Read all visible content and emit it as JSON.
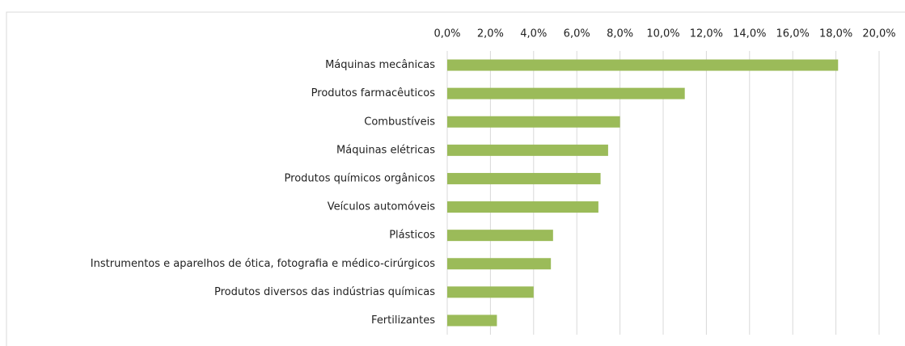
{
  "chart_data": {
    "type": "bar",
    "orientation": "horizontal",
    "categories": [
      "Máquinas mecânicas",
      "Produtos farmacêuticos",
      "Combustíveis ",
      "Máquinas elétricas",
      "Produtos químicos orgânicos",
      "Veículos automóveis",
      "Plásticos",
      "Instrumentos e aparelhos de ótica, fotografia e médico-cirúrgicos",
      "Produtos diversos das indústrias químicas",
      "Fertilizantes"
    ],
    "values": [
      18.1,
      11.0,
      8.0,
      7.45,
      7.1,
      7.0,
      4.9,
      4.8,
      4.0,
      2.3
    ],
    "color": "#9bbb59",
    "xlim": [
      0,
      20
    ],
    "xticks": [
      {
        "value": 0,
        "label": "0,0%"
      },
      {
        "value": 2,
        "label": "2,0%"
      },
      {
        "value": 4,
        "label": "4,0%"
      },
      {
        "value": 6,
        "label": "6,0%"
      },
      {
        "value": 8,
        "label": "8,0%"
      },
      {
        "value": 10,
        "label": "10,0%"
      },
      {
        "value": 12,
        "label": "12,0%"
      },
      {
        "value": 14,
        "label": "14,0%"
      },
      {
        "value": 16,
        "label": "16,0%"
      },
      {
        "value": 18,
        "label": "18,0%"
      },
      {
        "value": 20,
        "label": "20,0%"
      }
    ],
    "grid": true
  }
}
